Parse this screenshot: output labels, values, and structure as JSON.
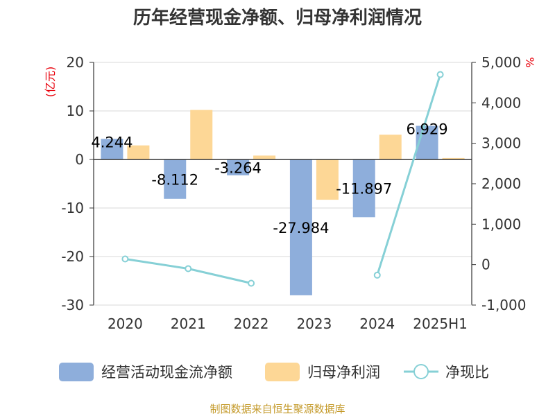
{
  "title": "历年经营现金净额、归母净利润情况",
  "source": "制图数据来自恒生聚源数据库",
  "chart_data": {
    "type": "bar",
    "categories": [
      "2020",
      "2021",
      "2022",
      "2023",
      "2024",
      "2025H1"
    ],
    "left_axis": {
      "unit": "(亿元)",
      "ylim": [
        -30,
        20
      ],
      "ticks": [
        20,
        10,
        0,
        -10,
        -20,
        -30
      ]
    },
    "right_axis": {
      "unit": "%",
      "ylim": [
        -1000,
        5000
      ],
      "ticks": [
        "5,000",
        "4,000",
        "3,000",
        "2,000",
        "1,000",
        "0",
        "-1,000"
      ]
    },
    "series": [
      {
        "name": "经营活动现金流净额",
        "type": "bar",
        "axis": "left",
        "color": "#8eaedb",
        "values": [
          4.244,
          -8.112,
          -3.264,
          -27.984,
          -11.897,
          6.929
        ],
        "labels": [
          "4.244",
          "-8.112",
          "-3.264",
          "-27.984",
          "-11.897",
          "6.929"
        ]
      },
      {
        "name": "归母净利润",
        "type": "bar",
        "axis": "left",
        "color": "#fdd796",
        "values": [
          2.9,
          10.2,
          0.8,
          -8.3,
          5.1,
          0.3
        ]
      },
      {
        "name": "净现比",
        "type": "line",
        "axis": "right",
        "color": "#86d0d6",
        "values": [
          140,
          -100,
          -460,
          null,
          -260,
          4700
        ]
      }
    ],
    "grid": true,
    "legend_position": "bottom"
  }
}
